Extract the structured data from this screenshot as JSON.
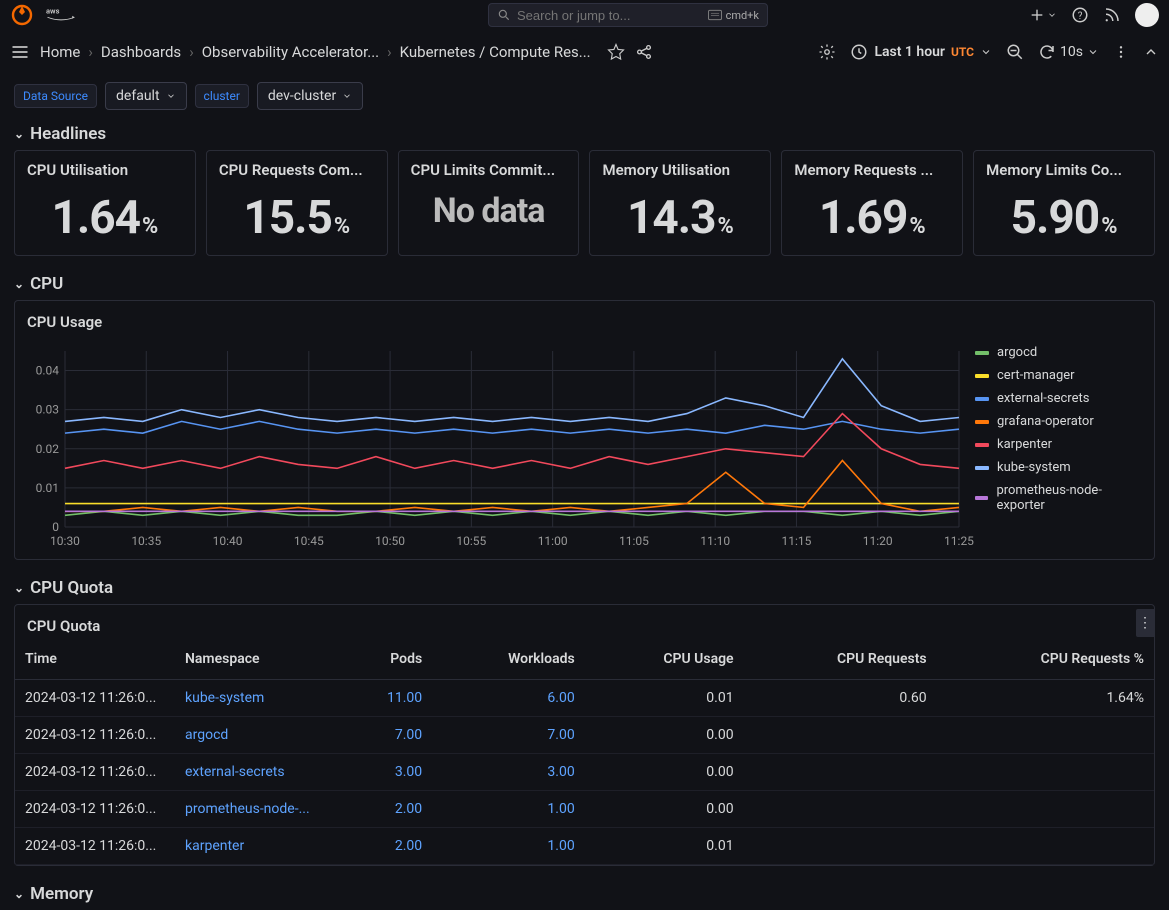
{
  "search": {
    "placeholder": "Search or jump to...",
    "shortcut": "cmd+k"
  },
  "breadcrumbs": {
    "home": "Home",
    "dashboards": "Dashboards",
    "folder": "Observability Accelerator...",
    "current": "Kubernetes / Compute Res..."
  },
  "time": {
    "label": "Last 1 hour",
    "tz": "UTC",
    "refresh": "10s"
  },
  "vars": {
    "ds_label": "Data Source",
    "ds_value": "default",
    "cluster_label": "cluster",
    "cluster_value": "dev-cluster"
  },
  "sections": {
    "headlines": "Headlines",
    "cpu": "CPU",
    "cpu_quota": "CPU Quota",
    "memory": "Memory"
  },
  "stats": [
    {
      "title": "CPU Utilisation",
      "value": "1.64",
      "unit": "%"
    },
    {
      "title": "CPU Requests Com...",
      "value": "15.5",
      "unit": "%"
    },
    {
      "title": "CPU Limits Commit...",
      "value": "No data",
      "unit": ""
    },
    {
      "title": "Memory Utilisation",
      "value": "14.3",
      "unit": "%"
    },
    {
      "title": "Memory Requests ...",
      "value": "1.69",
      "unit": "%"
    },
    {
      "title": "Memory Limits Co...",
      "value": "5.90",
      "unit": "%"
    }
  ],
  "chart": {
    "title": "CPU Usage",
    "ylim": [
      0,
      0.045
    ],
    "yticks": [
      0,
      0.01,
      0.02,
      0.03,
      0.04
    ],
    "xticks": [
      "10:30",
      "10:35",
      "10:40",
      "10:45",
      "10:50",
      "10:55",
      "11:00",
      "11:05",
      "11:10",
      "11:15",
      "11:20",
      "11:25"
    ],
    "grid_color": "#2a2c37",
    "series": [
      {
        "name": "argocd",
        "color": "#73bf69",
        "values": [
          0.003,
          0.004,
          0.003,
          0.004,
          0.003,
          0.004,
          0.003,
          0.003,
          0.004,
          0.003,
          0.004,
          0.003,
          0.004,
          0.003,
          0.004,
          0.003,
          0.004,
          0.003,
          0.004,
          0.004,
          0.003,
          0.004,
          0.003,
          0.004
        ]
      },
      {
        "name": "cert-manager",
        "color": "#fade2a",
        "values": [
          0.006,
          0.006,
          0.006,
          0.006,
          0.006,
          0.006,
          0.006,
          0.006,
          0.006,
          0.006,
          0.006,
          0.006,
          0.006,
          0.006,
          0.006,
          0.006,
          0.006,
          0.006,
          0.006,
          0.006,
          0.006,
          0.006,
          0.006,
          0.006
        ]
      },
      {
        "name": "external-secrets",
        "color": "#5794f2",
        "values": [
          0.024,
          0.025,
          0.024,
          0.027,
          0.025,
          0.027,
          0.025,
          0.024,
          0.025,
          0.024,
          0.025,
          0.024,
          0.025,
          0.024,
          0.025,
          0.024,
          0.025,
          0.024,
          0.026,
          0.025,
          0.027,
          0.025,
          0.024,
          0.025
        ]
      },
      {
        "name": "grafana-operator",
        "color": "#ff780a",
        "values": [
          0.004,
          0.004,
          0.005,
          0.004,
          0.005,
          0.004,
          0.005,
          0.004,
          0.004,
          0.005,
          0.004,
          0.005,
          0.004,
          0.005,
          0.004,
          0.005,
          0.006,
          0.014,
          0.006,
          0.005,
          0.017,
          0.006,
          0.004,
          0.005
        ]
      },
      {
        "name": "karpenter",
        "color": "#f2495c",
        "values": [
          0.015,
          0.017,
          0.015,
          0.017,
          0.015,
          0.018,
          0.016,
          0.015,
          0.018,
          0.015,
          0.017,
          0.015,
          0.017,
          0.015,
          0.018,
          0.016,
          0.018,
          0.02,
          0.019,
          0.018,
          0.029,
          0.02,
          0.016,
          0.015
        ]
      },
      {
        "name": "kube-system",
        "color": "#8ab8ff",
        "values": [
          0.027,
          0.028,
          0.027,
          0.03,
          0.028,
          0.03,
          0.028,
          0.027,
          0.028,
          0.027,
          0.028,
          0.027,
          0.028,
          0.027,
          0.028,
          0.027,
          0.029,
          0.033,
          0.031,
          0.028,
          0.043,
          0.031,
          0.027,
          0.028
        ]
      },
      {
        "name": "prometheus-node-exporter",
        "color": "#b877d9",
        "values": [
          0.004,
          0.004,
          0.004,
          0.004,
          0.004,
          0.004,
          0.004,
          0.004,
          0.004,
          0.004,
          0.004,
          0.004,
          0.004,
          0.004,
          0.004,
          0.004,
          0.004,
          0.004,
          0.004,
          0.004,
          0.004,
          0.004,
          0.004,
          0.004
        ]
      }
    ]
  },
  "quota": {
    "title": "CPU Quota",
    "columns": [
      "Time",
      "Namespace",
      "Pods",
      "Workloads",
      "CPU Usage",
      "CPU Requests",
      "CPU Requests %"
    ],
    "rows": [
      {
        "time": "2024-03-12 11:26:0...",
        "ns": "kube-system",
        "pods": "11.00",
        "wl": "6.00",
        "cpu": "0.01",
        "req": "0.60",
        "reqp": "1.64%"
      },
      {
        "time": "2024-03-12 11:26:0...",
        "ns": "argocd",
        "pods": "7.00",
        "wl": "7.00",
        "cpu": "0.00",
        "req": "",
        "reqp": ""
      },
      {
        "time": "2024-03-12 11:26:0...",
        "ns": "external-secrets",
        "pods": "3.00",
        "wl": "3.00",
        "cpu": "0.00",
        "req": "",
        "reqp": ""
      },
      {
        "time": "2024-03-12 11:26:0...",
        "ns": "prometheus-node-...",
        "pods": "2.00",
        "wl": "1.00",
        "cpu": "0.00",
        "req": "",
        "reqp": ""
      },
      {
        "time": "2024-03-12 11:26:0...",
        "ns": "karpenter",
        "pods": "2.00",
        "wl": "1.00",
        "cpu": "0.01",
        "req": "",
        "reqp": ""
      }
    ]
  }
}
